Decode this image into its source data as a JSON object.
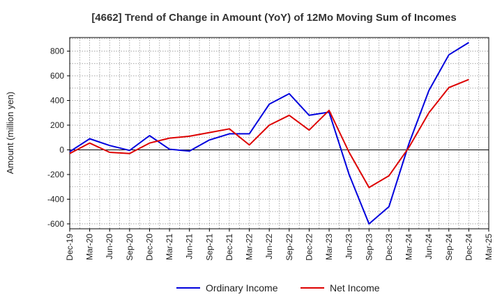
{
  "chart_data": {
    "type": "line",
    "title": "[4662]  Trend of Change in Amount (YoY) of 12Mo Moving Sum of Incomes",
    "ylabel": "Amount (million yen)",
    "xlabel": "",
    "ylim": [
      -640,
      910
    ],
    "yticks": [
      800,
      600,
      400,
      200,
      0,
      -200,
      -400,
      -600
    ],
    "categories": [
      "Dec-19",
      "Mar-20",
      "Jun-20",
      "Sep-20",
      "Dec-20",
      "Mar-21",
      "Jun-21",
      "Sep-21",
      "Dec-21",
      "Mar-22",
      "Jun-22",
      "Sep-22",
      "Dec-22",
      "Mar-23",
      "Jun-23",
      "Sep-23",
      "Dec-23",
      "Mar-24",
      "Jun-24",
      "Sep-24",
      "Dec-24",
      "Mar-25"
    ],
    "grid": true,
    "legend": "bottom-center",
    "series": [
      {
        "name": "Ordinary Income",
        "color": "#0000dd",
        "values": [
          -15,
          90,
          35,
          -5,
          115,
          5,
          -10,
          80,
          130,
          130,
          370,
          455,
          280,
          305,
          -200,
          -600,
          -460,
          50,
          480,
          770,
          870,
          null
        ]
      },
      {
        "name": "Net Income",
        "color": "#dd0000",
        "values": [
          -30,
          55,
          -20,
          -30,
          55,
          95,
          110,
          140,
          170,
          40,
          200,
          280,
          160,
          320,
          -20,
          -305,
          -210,
          20,
          300,
          505,
          570,
          null
        ]
      }
    ]
  }
}
